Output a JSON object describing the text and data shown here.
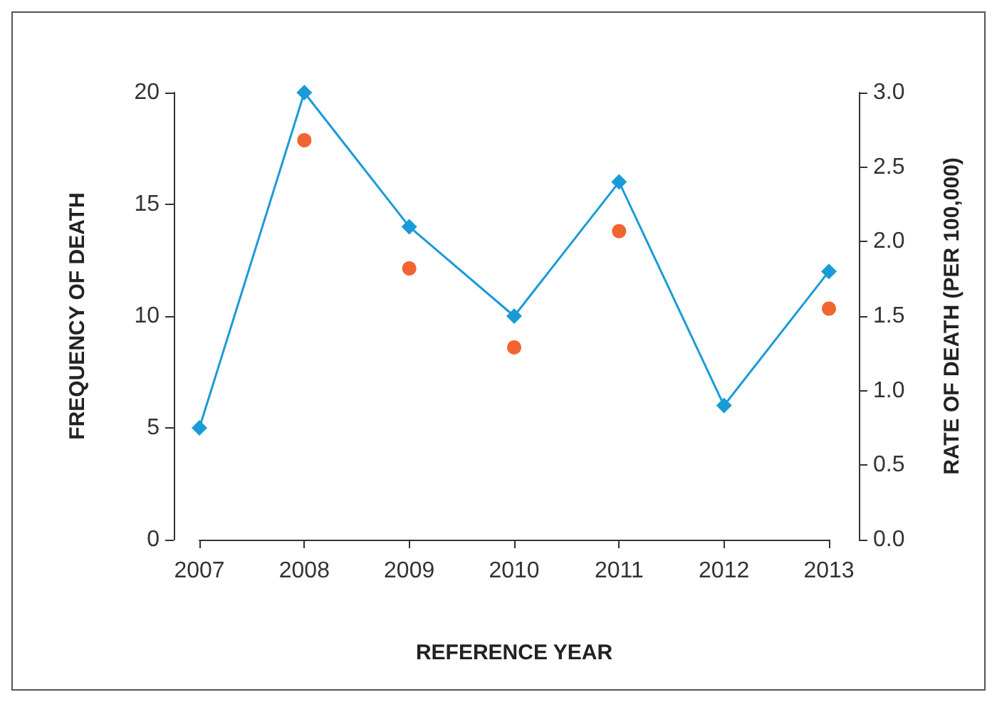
{
  "chart_data": {
    "type": "line",
    "xlabel": "REFERENCE YEAR",
    "ylabel": "FREQUENCY OF DEATH",
    "y2label": "RATE OF DEATH (PER 100,000)",
    "categories": [
      "2007",
      "2008",
      "2009",
      "2010",
      "2011",
      "2012",
      "2013"
    ],
    "series": [
      {
        "color": "#1a9bd7",
        "marker": "diamond",
        "values": [
          5,
          20,
          14,
          10,
          16,
          6,
          12
        ]
      },
      {
        "type": "scatter",
        "axis": "y2",
        "color": "#f26430",
        "marker": "circle",
        "values": [
          null,
          2.68,
          1.82,
          1.29,
          2.07,
          null,
          1.55
        ]
      }
    ],
    "ylim": [
      0,
      20
    ],
    "yticks": [
      0,
      5,
      10,
      15,
      20
    ],
    "y2lim": [
      0,
      3
    ],
    "y2ticks": [
      {
        "value": 0,
        "label": "0.0"
      },
      {
        "value": 0.5,
        "label": "0.5"
      },
      {
        "value": 1,
        "label": "1.0"
      },
      {
        "value": 1.5,
        "label": "1.5"
      },
      {
        "value": 2,
        "label": "2.0"
      },
      {
        "value": 2.5,
        "label": "2.5"
      },
      {
        "value": 3,
        "label": "3.0"
      }
    ],
    "grid": false
  }
}
